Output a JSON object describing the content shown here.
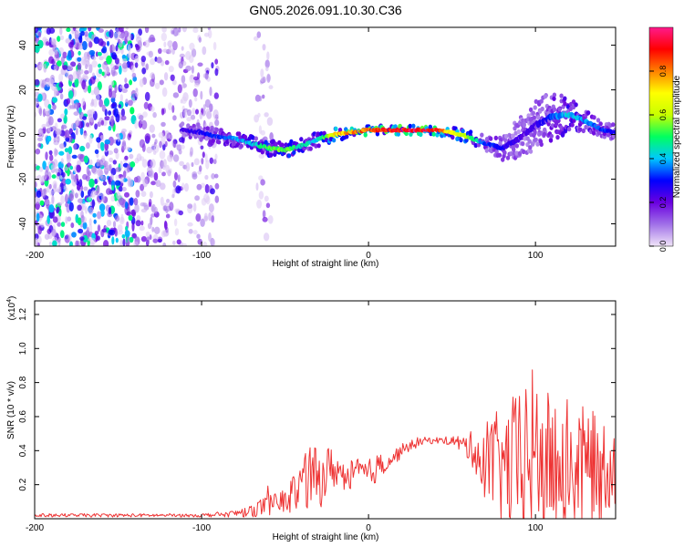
{
  "title": "GN05.2026.091.10.30.C36",
  "chart_data": [
    {
      "type": "heatmap",
      "title": "GN05.2026.091.10.30.C36",
      "xlabel": "Height of straight line (km)",
      "ylabel": "Frequency (Hz)",
      "xlim": [
        -200,
        148
      ],
      "ylim": [
        -50,
        48
      ],
      "x_ticks": [
        -200,
        -100,
        0,
        100
      ],
      "y_ticks": [
        40,
        20,
        0,
        -20,
        -40
      ],
      "colorbar": {
        "label": "Normalized spectral amplitude",
        "range": [
          0.0,
          1.0
        ],
        "ticks": [
          0.0,
          0.2,
          0.4,
          0.6,
          0.8
        ],
        "colors": [
          "#f0e4f8",
          "#a070e8",
          "#6a00e0",
          "#0000ff",
          "#00c8ff",
          "#00ff60",
          "#c8ff00",
          "#ffff00",
          "#ff8000",
          "#ff0000",
          "#ff1a8c"
        ]
      },
      "ridge": {
        "x": [
          -112,
          -100,
          -90,
          -80,
          -70,
          -60,
          -50,
          -40,
          -30,
          -20,
          -10,
          0,
          10,
          20,
          30,
          40,
          50,
          60,
          70,
          80,
          90,
          100,
          110,
          120,
          130,
          140,
          148
        ],
        "frequency": [
          2,
          1,
          -1,
          -2,
          -4,
          -6,
          -7,
          -5,
          -2,
          0,
          1,
          2,
          2,
          2,
          2,
          2,
          1,
          -1,
          -4,
          -6,
          -2,
          4,
          8,
          9,
          6,
          2,
          1
        ],
        "amplitude": [
          0.25,
          0.3,
          0.35,
          0.4,
          0.45,
          0.55,
          0.6,
          0.5,
          0.45,
          0.75,
          0.85,
          0.9,
          0.95,
          1.0,
          1.0,
          0.95,
          0.75,
          0.6,
          0.35,
          0.3,
          0.25,
          0.25,
          0.35,
          0.45,
          0.4,
          0.35,
          0.3
        ],
        "width_hz": [
          3,
          3,
          3,
          3,
          3,
          3,
          3,
          3,
          3,
          2.5,
          2,
          2,
          2,
          2,
          2,
          2,
          2,
          2.5,
          3,
          5,
          8,
          10,
          10,
          7,
          4,
          3,
          3
        ]
      },
      "noise_regions": [
        {
          "x_range": [
            -200,
            -140
          ],
          "level": 0.3
        },
        {
          "x_range": [
            -140,
            -90
          ],
          "level": 0.15
        },
        {
          "x_range": [
            -68,
            -58
          ],
          "level": 0.1
        }
      ]
    },
    {
      "type": "line",
      "xlabel": "Height of straight line (km)",
      "ylabel": "SNR (10 * v/v)",
      "multiplier": "(x10",
      "multiplier_exp": "4",
      "multiplier_close": ")",
      "xlim": [
        -200,
        148
      ],
      "ylim": [
        0,
        1.28
      ],
      "x_ticks": [
        -200,
        -100,
        0,
        100
      ],
      "y_ticks": [
        0.2,
        0.4,
        0.6,
        0.8,
        1.0,
        1.2
      ],
      "series": [
        {
          "name": "SNR",
          "color": "#ee3333",
          "x": [
            -200,
            -150,
            -100,
            -80,
            -70,
            -60,
            -50,
            -45,
            -40,
            -35,
            -30,
            -25,
            -20,
            -15,
            -10,
            -5,
            0,
            5,
            10,
            15,
            20,
            25,
            30,
            35,
            40,
            45,
            50,
            55,
            60,
            65,
            70,
            75,
            80,
            85,
            90,
            95,
            100,
            105,
            110,
            115,
            120,
            125,
            130,
            135,
            140,
            145,
            148
          ],
          "mean": [
            0.02,
            0.02,
            0.02,
            0.03,
            0.05,
            0.08,
            0.1,
            0.15,
            0.2,
            0.25,
            0.22,
            0.28,
            0.3,
            0.25,
            0.25,
            0.28,
            0.25,
            0.3,
            0.33,
            0.36,
            0.4,
            0.43,
            0.45,
            0.46,
            0.46,
            0.46,
            0.46,
            0.44,
            0.42,
            0.4,
            0.35,
            0.32,
            0.3,
            0.3,
            0.32,
            0.35,
            0.35,
            0.33,
            0.32,
            0.32,
            0.32,
            0.3,
            0.3,
            0.28,
            0.3,
            0.35,
            0.35
          ],
          "spread": [
            0.01,
            0.01,
            0.01,
            0.02,
            0.04,
            0.06,
            0.08,
            0.12,
            0.15,
            0.2,
            0.18,
            0.15,
            0.12,
            0.08,
            0.1,
            0.08,
            0.1,
            0.08,
            0.06,
            0.05,
            0.04,
            0.03,
            0.03,
            0.02,
            0.02,
            0.02,
            0.03,
            0.05,
            0.08,
            0.15,
            0.25,
            0.3,
            0.35,
            0.4,
            0.45,
            0.6,
            0.5,
            0.45,
            0.4,
            0.4,
            0.4,
            0.4,
            0.35,
            0.35,
            0.3,
            0.3,
            0.3
          ]
        }
      ]
    }
  ]
}
